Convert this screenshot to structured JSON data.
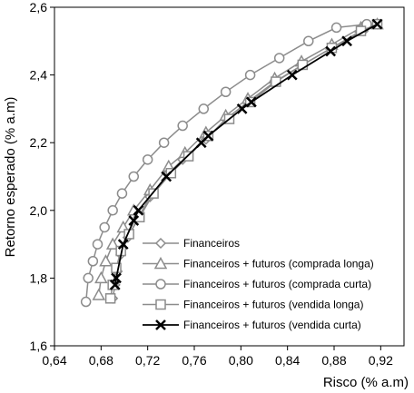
{
  "chart_data": {
    "type": "line",
    "xlabel": "Risco (% a.m)",
    "ylabel": "Retorno esperado (% a.m)",
    "xlim": [
      0.64,
      0.94
    ],
    "ylim": [
      1.6,
      2.6
    ],
    "xticks": [
      "0,64",
      "0,68",
      "0,72",
      "0,76",
      "0,80",
      "0,84",
      "0,88",
      "0,92"
    ],
    "yticks": [
      "1,6",
      "1,8",
      "2,0",
      "2,2",
      "2,4",
      "2,6"
    ],
    "grid": false,
    "legend_position": "bottom-right",
    "series": [
      {
        "name": "Financeiros",
        "marker": "diamond",
        "color": "#8c8c8c",
        "x": [
          0.69,
          0.692,
          0.694,
          0.697,
          0.703,
          0.712,
          0.722,
          0.738,
          0.75,
          0.77,
          0.787,
          0.806,
          0.829,
          0.853,
          0.878,
          0.905,
          0.917
        ],
        "y": [
          1.74,
          1.78,
          1.82,
          1.87,
          1.92,
          1.98,
          2.04,
          2.11,
          2.15,
          2.21,
          2.27,
          2.32,
          2.38,
          2.43,
          2.48,
          2.53,
          2.55
        ]
      },
      {
        "name": "Financeiros + futuros (comprada longa)",
        "marker": "triangle",
        "color": "#8c8c8c",
        "x": [
          0.678,
          0.68,
          0.684,
          0.69,
          0.699,
          0.708,
          0.722,
          0.738,
          0.752,
          0.77,
          0.787,
          0.806,
          0.829,
          0.852,
          0.878,
          0.903,
          0.917
        ],
        "y": [
          1.75,
          1.8,
          1.85,
          1.9,
          1.95,
          2.0,
          2.06,
          2.13,
          2.17,
          2.23,
          2.28,
          2.33,
          2.39,
          2.44,
          2.49,
          2.54,
          2.55
        ]
      },
      {
        "name": "Financeiros + futuros (comprada curta)",
        "marker": "circle",
        "color": "#8c8c8c",
        "x": [
          0.667,
          0.669,
          0.673,
          0.677,
          0.683,
          0.69,
          0.698,
          0.708,
          0.72,
          0.734,
          0.75,
          0.768,
          0.787,
          0.808,
          0.833,
          0.858,
          0.882,
          0.908
        ],
        "y": [
          1.73,
          1.8,
          1.85,
          1.9,
          1.95,
          2.0,
          2.05,
          2.1,
          2.15,
          2.2,
          2.25,
          2.3,
          2.35,
          2.4,
          2.45,
          2.5,
          2.54,
          2.55
        ]
      },
      {
        "name": "Financeiros + futuros (vendida longa)",
        "marker": "square",
        "color": "#8c8c8c",
        "x": [
          0.688,
          0.69,
          0.693,
          0.697,
          0.704,
          0.713,
          0.725,
          0.74,
          0.755,
          0.772,
          0.79,
          0.808,
          0.83,
          0.853,
          0.878,
          0.903,
          0.917
        ],
        "y": [
          1.74,
          1.78,
          1.83,
          1.88,
          1.93,
          1.98,
          2.05,
          2.11,
          2.16,
          2.22,
          2.27,
          2.32,
          2.38,
          2.43,
          2.48,
          2.53,
          2.55
        ]
      },
      {
        "name": "Financeiros + futuros (vendida curta)",
        "marker": "x",
        "color": "#000000",
        "x": [
          0.692,
          0.693,
          0.699,
          0.708,
          0.712,
          0.736,
          0.766,
          0.772,
          0.801,
          0.809,
          0.844,
          0.877,
          0.891,
          0.917
        ],
        "y": [
          1.78,
          1.8,
          1.9,
          1.97,
          2.0,
          2.1,
          2.2,
          2.22,
          2.3,
          2.32,
          2.4,
          2.47,
          2.5,
          2.55
        ]
      }
    ]
  }
}
